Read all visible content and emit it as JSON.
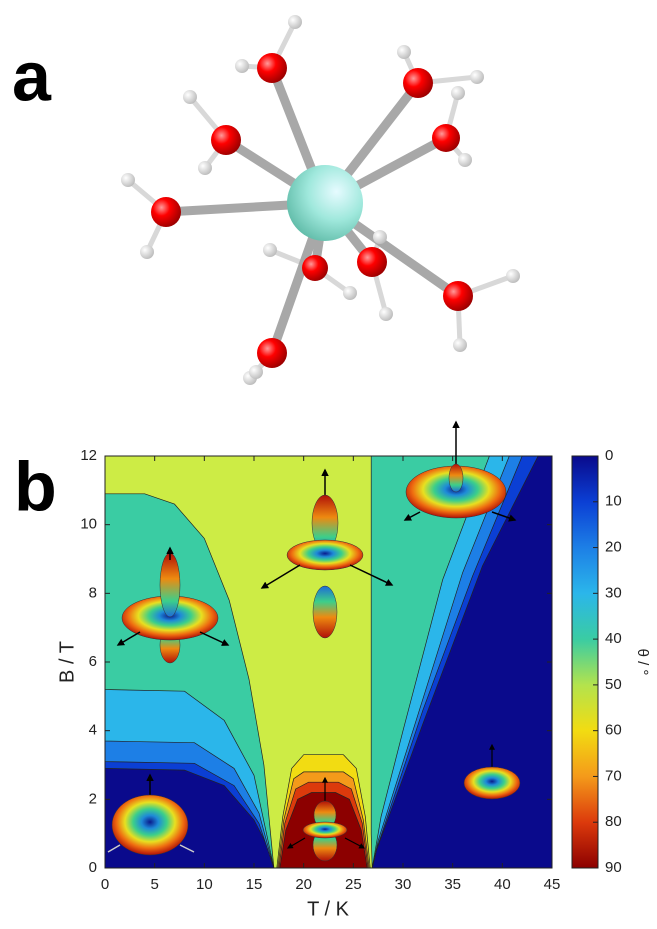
{
  "panel_labels": [
    "a",
    "b"
  ],
  "chart_data": {
    "type": "contour",
    "xlabel": "T / K",
    "ylabel": "B / T",
    "xlim": [
      0,
      45
    ],
    "ylim": [
      0,
      12
    ],
    "xticks": [
      0,
      5,
      10,
      15,
      20,
      25,
      30,
      35,
      40,
      45
    ],
    "yticks": [
      0,
      2,
      4,
      6,
      8,
      10,
      12
    ],
    "colorbar_label": "θ / °",
    "clim": [
      0,
      90
    ],
    "cticks": [
      0,
      10,
      20,
      30,
      40,
      50,
      60,
      70,
      80,
      90
    ],
    "colorbar_reversed": true,
    "colormap": [
      "#0a0a8c",
      "#0b3fd4",
      "#1d7fe6",
      "#2bb6ea",
      "#3acca3",
      "#b3e34d",
      "#f2dc12",
      "#f49a1a",
      "#dc3a0c",
      "#8c0000"
    ],
    "levels": [
      {
        "value": 0,
        "color": "#0a0a8c",
        "boundary": [
          [
            0,
            0
          ],
          [
            45,
            0
          ],
          [
            45,
            12
          ],
          [
            0,
            12
          ]
        ]
      },
      {
        "value": 10,
        "color": "#0b3fd4",
        "boundary": [
          [
            0,
            12
          ],
          [
            0,
            2.9
          ],
          [
            8,
            2.85
          ],
          [
            12,
            2.4
          ],
          [
            15,
            1.4
          ],
          [
            16.6,
            0.5
          ],
          [
            17,
            0
          ],
          [
            26.9,
            0
          ],
          [
            27.3,
            0.5
          ],
          [
            32,
            4.2
          ],
          [
            38,
            8.8
          ],
          [
            43.6,
            12
          ]
        ]
      },
      {
        "value": 20,
        "color": "#1d7fe6",
        "boundary": [
          [
            0,
            12
          ],
          [
            0,
            3.1
          ],
          [
            9,
            3.05
          ],
          [
            13,
            2.4
          ],
          [
            15.5,
            1.3
          ],
          [
            17,
            0
          ],
          [
            26.9,
            0
          ],
          [
            27.4,
            0.6
          ],
          [
            32,
            4.6
          ],
          [
            37,
            8.5
          ],
          [
            42,
            12
          ]
        ]
      },
      {
        "value": 30,
        "color": "#2bb6ea",
        "boundary": [
          [
            0,
            12
          ],
          [
            0,
            3.7
          ],
          [
            9,
            3.65
          ],
          [
            13,
            2.9
          ],
          [
            15.5,
            1.6
          ],
          [
            17,
            0
          ],
          [
            26.9,
            0
          ],
          [
            27.5,
            0.8
          ],
          [
            31,
            4
          ],
          [
            36,
            8.6
          ],
          [
            40.7,
            12
          ]
        ]
      },
      {
        "value": 40,
        "color": "#3acca3",
        "boundary": [
          [
            0,
            12
          ],
          [
            0,
            5.2
          ],
          [
            8,
            5.15
          ],
          [
            12,
            4.3
          ],
          [
            15,
            2.7
          ],
          [
            17,
            0
          ],
          [
            26.9,
            0
          ],
          [
            27.8,
            1.5
          ],
          [
            30,
            4
          ],
          [
            34,
            8.4
          ],
          [
            38.7,
            12
          ]
        ]
      },
      {
        "value": 50,
        "color": "#cdec45",
        "boundary": [
          [
            0,
            12
          ],
          [
            0,
            10.9
          ],
          [
            4,
            10.9
          ],
          [
            7,
            10.6
          ],
          [
            10,
            9.6
          ],
          [
            12.5,
            7.8
          ],
          [
            14.5,
            5.5
          ],
          [
            16,
            3
          ],
          [
            17,
            0
          ],
          [
            26.9,
            0
          ],
          [
            26.8,
            1
          ],
          [
            26.8,
            12
          ]
        ]
      },
      {
        "value": 60,
        "color": "#f2dc12",
        "boundary": [
          [
            17.3,
            0
          ],
          [
            17.9,
            1.5
          ],
          [
            18.8,
            2.9
          ],
          [
            20,
            3.3
          ],
          [
            24,
            3.3
          ],
          [
            25.3,
            2.9
          ],
          [
            26.2,
            1.5
          ],
          [
            26.7,
            0
          ]
        ]
      },
      {
        "value": 70,
        "color": "#f49a1a",
        "boundary": [
          [
            17.4,
            0
          ],
          [
            18,
            1.4
          ],
          [
            19,
            2.6
          ],
          [
            20,
            2.8
          ],
          [
            24,
            2.8
          ],
          [
            25,
            2.6
          ],
          [
            26,
            1.4
          ],
          [
            26.6,
            0
          ]
        ]
      },
      {
        "value": 80,
        "color": "#dc3a0c",
        "boundary": [
          [
            17.5,
            0
          ],
          [
            18.1,
            1.3
          ],
          [
            19.2,
            2.3
          ],
          [
            20.5,
            2.5
          ],
          [
            23.5,
            2.5
          ],
          [
            24.8,
            2.3
          ],
          [
            25.9,
            1.3
          ],
          [
            26.5,
            0
          ]
        ]
      },
      {
        "value": 85,
        "color": "#8c0000",
        "boundary": [
          [
            17.6,
            0
          ],
          [
            18.2,
            1.1
          ],
          [
            19.4,
            2.0
          ],
          [
            20.8,
            2.2
          ],
          [
            23.2,
            2.2
          ],
          [
            24.6,
            2.0
          ],
          [
            25.8,
            1.1
          ],
          [
            26.4,
            0
          ]
        ]
      }
    ]
  }
}
